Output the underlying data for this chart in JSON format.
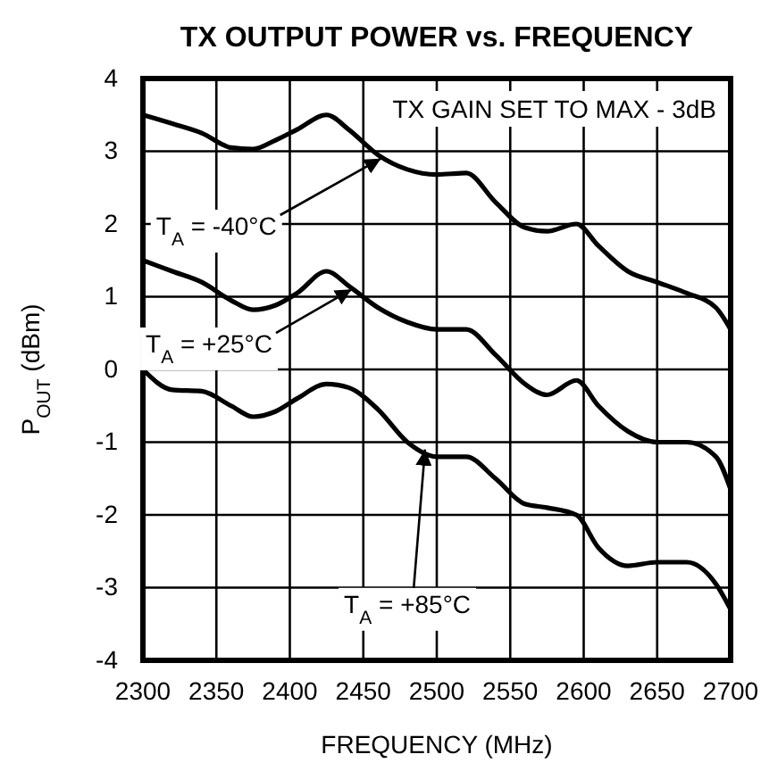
{
  "chart_data": {
    "type": "line",
    "title": "TX OUTPUT POWER vs. FREQUENCY",
    "xlabel": "FREQUENCY (MHz)",
    "ylabel": "P$_{OUT}$ (dBm)",
    "annotations": [
      "TX GAIN SET TO MAX - 3dB",
      {
        "text": "T$_{A}$ = -40°C",
        "x": 2462,
        "y": 2.9
      },
      {
        "text": "T$_{A}$ = +25°C",
        "x": 2442,
        "y": 1.1
      },
      {
        "text": "T$_{A}$ = +85°C",
        "x": 2492,
        "y": -1.1
      }
    ],
    "xlim": [
      2300,
      2700
    ],
    "xticks": [
      2300,
      2350,
      2400,
      2450,
      2500,
      2550,
      2600,
      2650,
      2700
    ],
    "ylim": [
      -4,
      4
    ],
    "yticks": [
      -4,
      -3,
      -2,
      -1,
      0,
      1,
      2,
      3,
      4
    ],
    "grid": true,
    "marker": "none",
    "line_style": "solid",
    "x": [
      2300,
      2320,
      2340,
      2360,
      2375,
      2390,
      2405,
      2425,
      2440,
      2460,
      2480,
      2500,
      2520,
      2540,
      2560,
      2575,
      2595,
      2610,
      2630,
      2650,
      2670,
      2690,
      2700
    ],
    "series": [
      {
        "color": "#000000",
        "values": [
          3.5,
          3.38,
          3.25,
          3.05,
          3.03,
          3.15,
          3.3,
          3.5,
          3.3,
          2.95,
          2.75,
          2.68,
          2.7,
          2.3,
          1.95,
          1.9,
          2.0,
          1.7,
          1.35,
          1.2,
          1.05,
          0.85,
          0.55
        ]
      },
      {
        "color": "#000000",
        "values": [
          1.5,
          1.35,
          1.2,
          0.95,
          0.82,
          0.88,
          1.05,
          1.35,
          1.15,
          0.85,
          0.65,
          0.55,
          0.55,
          0.2,
          -0.2,
          -0.35,
          -0.15,
          -0.5,
          -0.85,
          -1.0,
          -1.0,
          -1.2,
          -1.65
        ]
      },
      {
        "color": "#000000",
        "values": [
          0.0,
          -0.28,
          -0.3,
          -0.5,
          -0.65,
          -0.58,
          -0.4,
          -0.2,
          -0.25,
          -0.55,
          -1.0,
          -1.2,
          -1.2,
          -1.5,
          -1.85,
          -1.9,
          -2.0,
          -2.45,
          -2.7,
          -2.65,
          -2.65,
          -2.95,
          -3.3
        ]
      }
    ]
  }
}
